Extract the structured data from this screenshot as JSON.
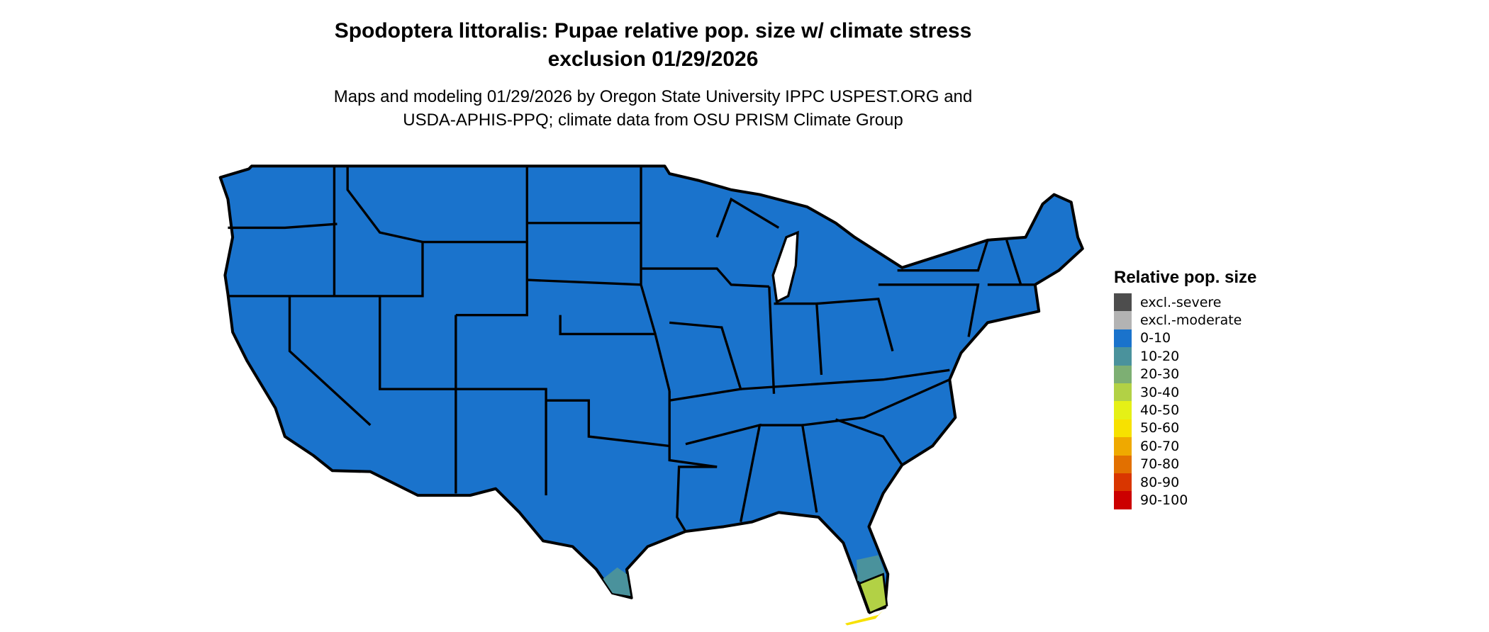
{
  "title": {
    "line1": "Spodoptera littoralis: Pupae relative pop. size w/ climate stress",
    "line2": "exclusion 01/29/2026"
  },
  "subtitle": {
    "line1": "Maps and modeling 01/29/2026 by Oregon State University IPPC USPEST.ORG and",
    "line2": "USDA-APHIS-PPQ; climate data from OSU PRISM Climate Group"
  },
  "map": {
    "region": "Contiguous United States",
    "dominant_class": "0-10",
    "highlighted_areas": [
      {
        "area": "South Texas tip",
        "class": "10-20"
      },
      {
        "area": "Central-south Florida",
        "class": "10-20"
      },
      {
        "area": "South Florida",
        "class": "30-40"
      },
      {
        "area": "Florida Keys",
        "class": "50-60"
      }
    ]
  },
  "legend": {
    "title": "Relative pop. size",
    "items": [
      {
        "label": "excl.-severe",
        "color": "#4d4d4d"
      },
      {
        "label": "excl.-moderate",
        "color": "#b3b3b3"
      },
      {
        "label": "0-10",
        "color": "#1a73cc"
      },
      {
        "label": "10-20",
        "color": "#4a929c"
      },
      {
        "label": "20-30",
        "color": "#7daf73"
      },
      {
        "label": "30-40",
        "color": "#b2d145"
      },
      {
        "label": "40-50",
        "color": "#e5f016"
      },
      {
        "label": "50-60",
        "color": "#f7e100"
      },
      {
        "label": "60-70",
        "color": "#efa900"
      },
      {
        "label": "70-80",
        "color": "#e27000"
      },
      {
        "label": "80-90",
        "color": "#d93600"
      },
      {
        "label": "90-100",
        "color": "#cc0000"
      }
    ]
  }
}
